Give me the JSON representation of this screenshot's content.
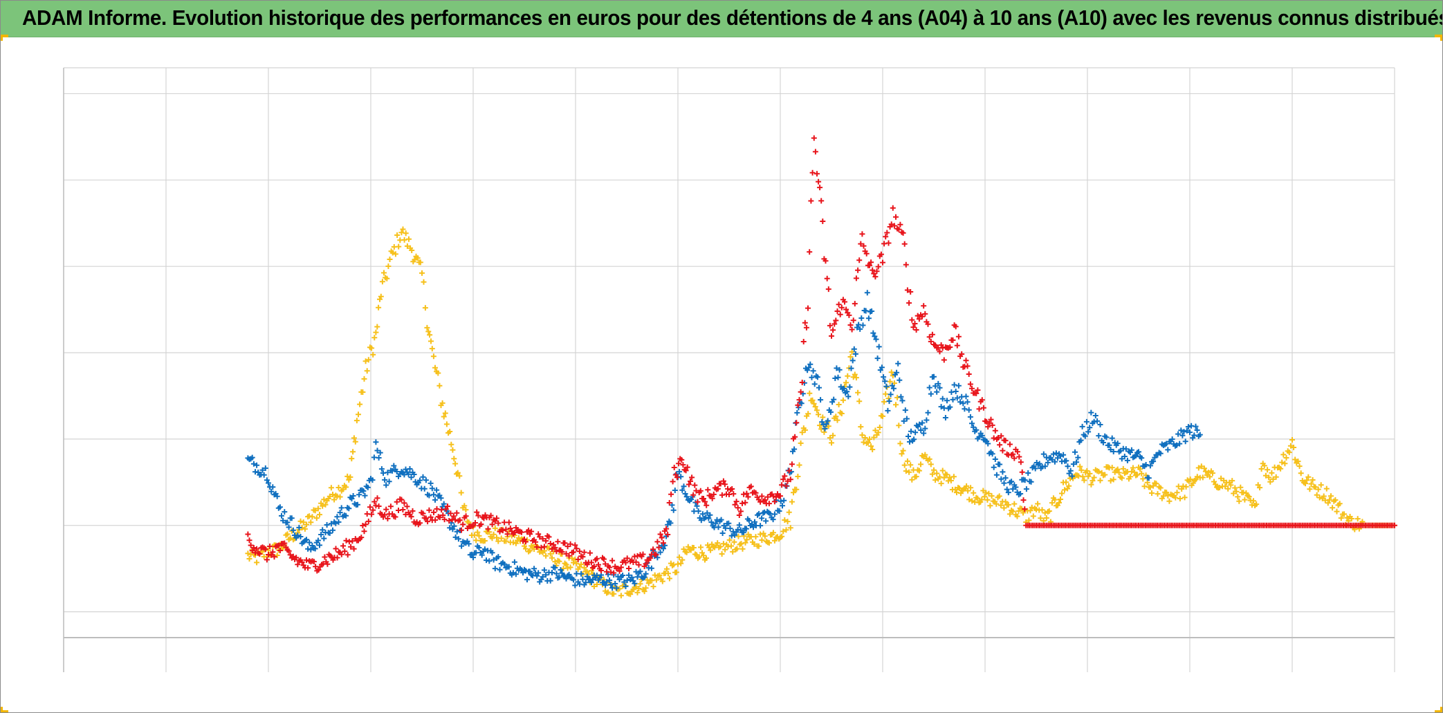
{
  "title": "ADAM Informe. Evolution historique des performances en euros pour des détentions de 4 ans (A04) à 10 ans (A10) avec les revenus connus distribués",
  "colors": {
    "title_bar": "#7cc47a",
    "corner_marks": "#f2b600",
    "grid": "#d4d4d4",
    "zero_line": "#bdbdbd",
    "series_red": "#e8141b",
    "series_blue": "#0f6fbf",
    "series_yellow": "#f6c01b"
  },
  "chart_data": {
    "type": "scatter",
    "marker": "plus",
    "title": "ADAM Informe. Evolution historique des performances en euros pour des détentions de 4 ans (A04) à 10 ans (A10) avec les revenus connus distribués",
    "xlabel": "",
    "ylabel": "",
    "xlim": [
      0,
      13
    ],
    "ylim": [
      -0.7,
      6.3
    ],
    "x_tick_count": 13,
    "y_gridlines": [
      0,
      1,
      2,
      3,
      4,
      5,
      6
    ],
    "reference_line_y": -0.3,
    "axis_tick_labels_visible": false,
    "grid": true,
    "legend": "none",
    "series": [
      {
        "color": "#e8141b",
        "points": [
          [
            1.8,
            0.85
          ],
          [
            1.9,
            0.72
          ],
          [
            2.0,
            0.66
          ],
          [
            2.1,
            0.75
          ],
          [
            2.3,
            0.58
          ],
          [
            2.4,
            0.52
          ],
          [
            2.55,
            0.6
          ],
          [
            2.7,
            0.68
          ],
          [
            2.85,
            0.82
          ],
          [
            2.95,
            1.0
          ],
          [
            3.05,
            1.28
          ],
          [
            3.15,
            1.12
          ],
          [
            3.3,
            1.23
          ],
          [
            3.45,
            1.08
          ],
          [
            3.6,
            1.12
          ],
          [
            3.75,
            1.15
          ],
          [
            3.9,
            1.02
          ],
          [
            4.05,
            1.08
          ],
          [
            4.2,
            1.02
          ],
          [
            4.35,
            0.95
          ],
          [
            4.5,
            0.88
          ],
          [
            4.65,
            0.82
          ],
          [
            4.8,
            0.78
          ],
          [
            4.95,
            0.72
          ],
          [
            5.1,
            0.62
          ],
          [
            5.25,
            0.56
          ],
          [
            5.4,
            0.52
          ],
          [
            5.55,
            0.56
          ],
          [
            5.7,
            0.6
          ],
          [
            5.8,
            0.75
          ],
          [
            5.9,
            0.95
          ],
          [
            5.95,
            1.55
          ],
          [
            6.05,
            1.78
          ],
          [
            6.15,
            1.42
          ],
          [
            6.25,
            1.28
          ],
          [
            6.35,
            1.4
          ],
          [
            6.5,
            1.45
          ],
          [
            6.6,
            1.2
          ],
          [
            6.7,
            1.4
          ],
          [
            6.85,
            1.32
          ],
          [
            7.0,
            1.38
          ],
          [
            7.1,
            1.62
          ],
          [
            7.2,
            2.5
          ],
          [
            7.27,
            3.7
          ],
          [
            7.33,
            5.5
          ],
          [
            7.4,
            4.6
          ],
          [
            7.5,
            3.2
          ],
          [
            7.6,
            3.6
          ],
          [
            7.7,
            3.35
          ],
          [
            7.8,
            4.3
          ],
          [
            7.9,
            3.9
          ],
          [
            8.0,
            4.1
          ],
          [
            8.1,
            4.6
          ],
          [
            8.2,
            4.3
          ],
          [
            8.3,
            3.3
          ],
          [
            8.4,
            3.5
          ],
          [
            8.5,
            3.1
          ],
          [
            8.6,
            3.0
          ],
          [
            8.7,
            3.25
          ],
          [
            8.8,
            2.85
          ],
          [
            8.9,
            2.55
          ],
          [
            9.0,
            2.3
          ],
          [
            9.1,
            2.05
          ],
          [
            9.2,
            1.9
          ],
          [
            9.3,
            1.85
          ],
          [
            9.35,
            1.78
          ],
          [
            9.4,
            1.0
          ],
          [
            10.0,
            1.0
          ],
          [
            11.0,
            1.0
          ],
          [
            12.0,
            1.0
          ],
          [
            13.0,
            1.0
          ]
        ]
      },
      {
        "color": "#0f6fbf",
        "points": [
          [
            1.8,
            1.75
          ],
          [
            1.9,
            1.68
          ],
          [
            2.0,
            1.6
          ],
          [
            2.1,
            1.2
          ],
          [
            2.2,
            1.05
          ],
          [
            2.3,
            0.9
          ],
          [
            2.4,
            0.72
          ],
          [
            2.5,
            0.85
          ],
          [
            2.6,
            0.95
          ],
          [
            2.7,
            1.12
          ],
          [
            2.8,
            1.25
          ],
          [
            2.9,
            1.32
          ],
          [
            3.0,
            1.5
          ],
          [
            3.05,
            1.9
          ],
          [
            3.15,
            1.55
          ],
          [
            3.3,
            1.68
          ],
          [
            3.45,
            1.55
          ],
          [
            3.6,
            1.4
          ],
          [
            3.7,
            1.2
          ],
          [
            3.8,
            1.0
          ],
          [
            3.9,
            0.8
          ],
          [
            4.0,
            0.65
          ],
          [
            4.1,
            0.72
          ],
          [
            4.2,
            0.58
          ],
          [
            4.35,
            0.52
          ],
          [
            4.5,
            0.45
          ],
          [
            4.65,
            0.42
          ],
          [
            4.8,
            0.45
          ],
          [
            4.95,
            0.38
          ],
          [
            5.1,
            0.36
          ],
          [
            5.25,
            0.38
          ],
          [
            5.4,
            0.35
          ],
          [
            5.55,
            0.36
          ],
          [
            5.7,
            0.5
          ],
          [
            5.8,
            0.72
          ],
          [
            5.9,
            0.88
          ],
          [
            6.0,
            1.6
          ],
          [
            6.1,
            1.35
          ],
          [
            6.2,
            1.1
          ],
          [
            6.3,
            1.08
          ],
          [
            6.45,
            0.98
          ],
          [
            6.6,
            0.92
          ],
          [
            6.75,
            1.05
          ],
          [
            6.9,
            1.1
          ],
          [
            7.05,
            1.35
          ],
          [
            7.15,
            2.05
          ],
          [
            7.25,
            2.9
          ],
          [
            7.35,
            2.7
          ],
          [
            7.45,
            2.05
          ],
          [
            7.55,
            2.8
          ],
          [
            7.65,
            2.5
          ],
          [
            7.75,
            3.2
          ],
          [
            7.85,
            3.6
          ],
          [
            7.95,
            3.05
          ],
          [
            8.05,
            2.4
          ],
          [
            8.15,
            2.8
          ],
          [
            8.25,
            2.0
          ],
          [
            8.4,
            2.15
          ],
          [
            8.5,
            2.8
          ],
          [
            8.6,
            2.3
          ],
          [
            8.7,
            2.6
          ],
          [
            8.8,
            2.45
          ],
          [
            8.9,
            2.1
          ],
          [
            9.0,
            2.05
          ],
          [
            9.1,
            1.7
          ],
          [
            9.2,
            1.5
          ],
          [
            9.3,
            1.38
          ],
          [
            9.45,
            1.55
          ],
          [
            9.6,
            1.78
          ],
          [
            9.75,
            1.82
          ],
          [
            9.85,
            1.62
          ],
          [
            9.95,
            2.05
          ],
          [
            10.05,
            2.25
          ],
          [
            10.2,
            1.95
          ],
          [
            10.35,
            1.85
          ],
          [
            10.5,
            1.78
          ],
          [
            10.6,
            1.62
          ],
          [
            10.7,
            1.85
          ],
          [
            10.8,
            1.92
          ],
          [
            10.9,
            2.0
          ],
          [
            11.0,
            2.1
          ],
          [
            11.1,
            2.05
          ]
        ]
      },
      {
        "color": "#f6c01b",
        "points": [
          [
            1.8,
            0.65
          ],
          [
            1.9,
            0.62
          ],
          [
            2.0,
            0.7
          ],
          [
            2.1,
            0.72
          ],
          [
            2.2,
            0.85
          ],
          [
            2.3,
            0.95
          ],
          [
            2.4,
            1.05
          ],
          [
            2.5,
            1.2
          ],
          [
            2.6,
            1.35
          ],
          [
            2.7,
            1.42
          ],
          [
            2.8,
            1.55
          ],
          [
            2.85,
            2.1
          ],
          [
            2.95,
            2.8
          ],
          [
            3.05,
            3.2
          ],
          [
            3.1,
            3.7
          ],
          [
            3.2,
            4.1
          ],
          [
            3.3,
            4.4
          ],
          [
            3.4,
            4.2
          ],
          [
            3.5,
            3.9
          ],
          [
            3.55,
            3.4
          ],
          [
            3.6,
            3.0
          ],
          [
            3.7,
            2.4
          ],
          [
            3.8,
            1.9
          ],
          [
            3.85,
            1.6
          ],
          [
            3.9,
            1.2
          ],
          [
            4.0,
            0.92
          ],
          [
            4.1,
            0.88
          ],
          [
            4.2,
            0.9
          ],
          [
            4.35,
            0.85
          ],
          [
            4.5,
            0.8
          ],
          [
            4.65,
            0.72
          ],
          [
            4.8,
            0.62
          ],
          [
            4.95,
            0.55
          ],
          [
            5.1,
            0.45
          ],
          [
            5.25,
            0.32
          ],
          [
            5.4,
            0.22
          ],
          [
            5.55,
            0.28
          ],
          [
            5.7,
            0.32
          ],
          [
            5.85,
            0.42
          ],
          [
            6.0,
            0.52
          ],
          [
            6.1,
            0.72
          ],
          [
            6.25,
            0.68
          ],
          [
            6.4,
            0.72
          ],
          [
            6.55,
            0.78
          ],
          [
            6.7,
            0.82
          ],
          [
            6.85,
            0.85
          ],
          [
            7.0,
            0.92
          ],
          [
            7.1,
            1.1
          ],
          [
            7.2,
            1.9
          ],
          [
            7.3,
            2.55
          ],
          [
            7.4,
            2.2
          ],
          [
            7.5,
            2.05
          ],
          [
            7.6,
            2.4
          ],
          [
            7.7,
            3.0
          ],
          [
            7.8,
            2.05
          ],
          [
            7.9,
            1.9
          ],
          [
            8.0,
            2.25
          ],
          [
            8.1,
            2.8
          ],
          [
            8.2,
            1.8
          ],
          [
            8.3,
            1.55
          ],
          [
            8.4,
            1.8
          ],
          [
            8.5,
            1.6
          ],
          [
            8.6,
            1.55
          ],
          [
            8.75,
            1.45
          ],
          [
            8.9,
            1.35
          ],
          [
            9.05,
            1.3
          ],
          [
            9.2,
            1.25
          ],
          [
            9.4,
            1.1
          ],
          [
            9.5,
            1.2
          ],
          [
            9.6,
            1.05
          ],
          [
            9.75,
            1.4
          ],
          [
            9.9,
            1.62
          ],
          [
            10.05,
            1.55
          ],
          [
            10.2,
            1.6
          ],
          [
            10.35,
            1.58
          ],
          [
            10.5,
            1.6
          ],
          [
            10.6,
            1.45
          ],
          [
            10.7,
            1.4
          ],
          [
            10.8,
            1.35
          ],
          [
            10.95,
            1.4
          ],
          [
            11.1,
            1.62
          ],
          [
            11.25,
            1.52
          ],
          [
            11.4,
            1.45
          ],
          [
            11.55,
            1.3
          ],
          [
            11.65,
            1.18
          ],
          [
            11.7,
            1.75
          ],
          [
            11.8,
            1.55
          ],
          [
            11.9,
            1.75
          ],
          [
            12.0,
            1.95
          ],
          [
            12.1,
            1.55
          ],
          [
            12.2,
            1.45
          ],
          [
            12.35,
            1.35
          ],
          [
            12.45,
            1.2
          ],
          [
            12.55,
            1.05
          ],
          [
            12.7,
            1.0
          ],
          [
            12.85,
            1.0
          ],
          [
            13.0,
            1.0
          ]
        ]
      }
    ]
  }
}
